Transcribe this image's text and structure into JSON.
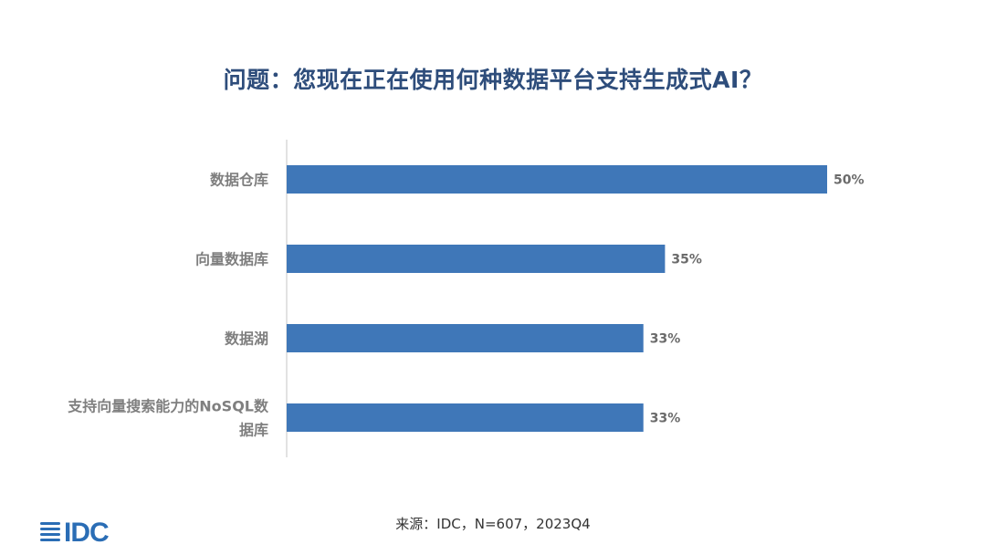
{
  "title": "问题：您现在正在使用何种数据平台支持生成式AI？",
  "source": "来源：IDC，N=607，2023Q4",
  "logo": {
    "text": "IDC",
    "icon": "idc-logo-icon",
    "color": "#2a6db5"
  },
  "chart_data": {
    "type": "bar",
    "orientation": "horizontal",
    "categories": [
      "数据仓库",
      "向量数据库",
      "数据湖",
      "支持向量搜索能力的NoSQL数据库"
    ],
    "category_lines": [
      [
        "数据仓库"
      ],
      [
        "向量数据库"
      ],
      [
        "数据湖"
      ],
      [
        "支持向量搜索能力的NoSQL数",
        "据库"
      ]
    ],
    "values": [
      50,
      35,
      33,
      33
    ],
    "value_labels": [
      "50%",
      "35%",
      "33%",
      "33%"
    ],
    "xlim": [
      0,
      50
    ],
    "grid": false,
    "bar_color": "#3f77b8",
    "axis_color": "#d9d9d9"
  }
}
